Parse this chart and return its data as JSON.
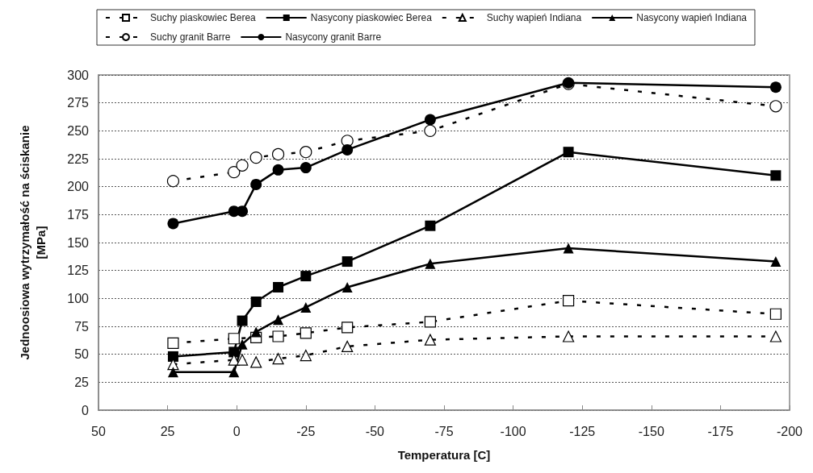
{
  "chart_data": {
    "type": "line",
    "xlabel": "Temperatura [C]",
    "ylabel": "Jednoosiowa wytrzymałość na ściskanie\n[MPa]",
    "xlim": [
      50,
      -200
    ],
    "xticks": [
      50,
      25,
      0,
      -25,
      -50,
      -75,
      -100,
      -125,
      -150,
      -175,
      -200
    ],
    "ylim": [
      0,
      300
    ],
    "yticks": [
      0,
      25,
      50,
      75,
      100,
      125,
      150,
      175,
      200,
      225,
      250,
      275,
      300
    ],
    "grid": "y",
    "legend": "top",
    "series": [
      {
        "name": "Suchy piaskowiec Berea",
        "color": "#000000",
        "marker": "square",
        "line_style": "dashed",
        "x": [
          23,
          1,
          -7,
          -15,
          -25,
          -40,
          -70,
          -120,
          -195
        ],
        "values": [
          60,
          64,
          65,
          66,
          69,
          74,
          79,
          98,
          86
        ]
      },
      {
        "name": "Nasycony piaskowiec Berea",
        "color": "#000000",
        "marker": "square",
        "line_style": "solid",
        "x": [
          23,
          1,
          -2,
          -7,
          -15,
          -25,
          -40,
          -70,
          -120,
          -195
        ],
        "values": [
          48,
          52,
          80,
          97,
          110,
          120,
          133,
          165,
          231,
          210
        ]
      },
      {
        "name": "Suchy wapień Indiana",
        "color": "#000000",
        "marker": "triangle",
        "line_style": "dashed",
        "x": [
          23,
          1,
          -2,
          -7,
          -15,
          -25,
          -40,
          -70,
          -120,
          -195
        ],
        "values": [
          41,
          45,
          45,
          43,
          46,
          49,
          57,
          63,
          66,
          66
        ]
      },
      {
        "name": "Nasycony wapień Indiana",
        "color": "#000000",
        "marker": "triangle",
        "line_style": "solid",
        "x": [
          23,
          1,
          -2,
          -7,
          -15,
          -25,
          -40,
          -70,
          -120,
          -195
        ],
        "values": [
          34,
          34,
          59,
          70,
          81,
          92,
          110,
          131,
          145,
          133
        ]
      },
      {
        "name": "Suchy granit Barre",
        "color": "#000000",
        "marker": "circle",
        "line_style": "dashed",
        "x": [
          23,
          1,
          -2,
          -7,
          -15,
          -25,
          -40,
          -70,
          -120,
          -195
        ],
        "values": [
          205,
          213,
          219,
          226,
          229,
          231,
          241,
          250,
          292,
          272
        ]
      },
      {
        "name": "Nasycony granit Barre",
        "color": "#000000",
        "marker": "circle",
        "line_style": "solid",
        "x": [
          23,
          1,
          -2,
          -7,
          -15,
          -25,
          -40,
          -70,
          -120,
          -195
        ],
        "values": [
          167,
          178,
          178,
          202,
          215,
          217,
          233,
          260,
          293,
          289
        ]
      }
    ]
  }
}
